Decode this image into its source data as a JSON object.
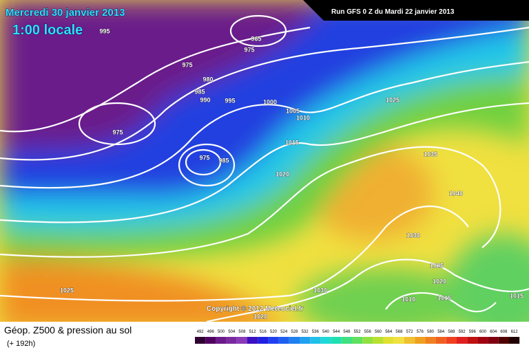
{
  "header": {
    "title": "Mercredi 30 janvier 2013",
    "subtitle": "1:00 locale",
    "run": "Run GFS 0 Z du Mardi 22 janvier 2013"
  },
  "copyright": "Copyright © 2012 Meteociel.fr",
  "footer": {
    "title": "Géop. Z500 & pression au sol",
    "lead": "(+ 192h)"
  },
  "isobar_labels": [
    995,
    965,
    975,
    975,
    980,
    985,
    990,
    995,
    1000,
    1005,
    1010,
    975,
    975,
    985,
    1015,
    1020,
    1025,
    1035,
    1040,
    1030,
    1025,
    1020,
    1010,
    1015,
    1015,
    1030,
    1025,
    1020
  ],
  "scale": [
    492,
    496,
    500,
    504,
    508,
    512,
    516,
    520,
    524,
    528,
    532,
    536,
    540,
    544,
    548,
    552,
    556,
    560,
    564,
    568,
    572,
    576,
    580,
    584,
    588,
    592,
    596,
    600,
    604,
    608,
    612
  ]
}
